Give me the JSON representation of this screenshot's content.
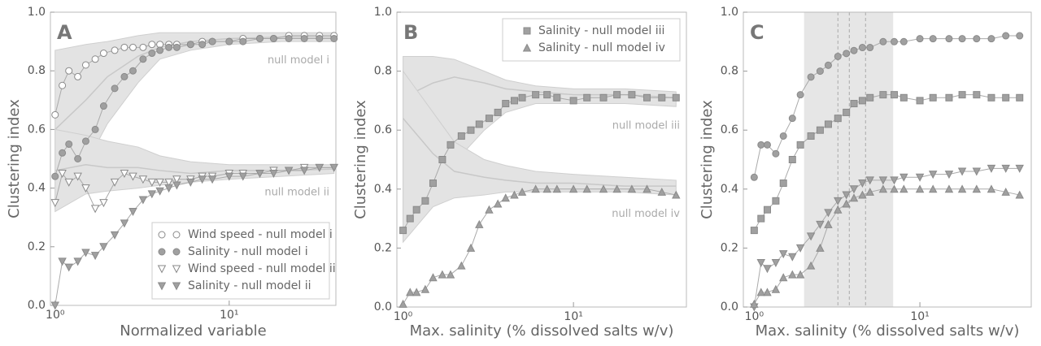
{
  "chart_data": [
    {
      "type": "scatter",
      "title": "A",
      "xlabel": "Normalized variable",
      "ylabel": "Clustering index",
      "log_x": true,
      "legend": "lower right",
      "xlim": [
        0.94,
        41
      ],
      "xticks": [
        {
          "value": 1,
          "label": "10⁰"
        },
        {
          "value": 10,
          "label": "10¹"
        }
      ],
      "ylim": [
        0,
        1
      ],
      "yticks": [
        {
          "value": 0,
          "label": "0.0"
        },
        0.2,
        0.4,
        0.6,
        0.8,
        {
          "value": 1,
          "label": "1.0"
        }
      ],
      "x": [
        1.0,
        1.1,
        1.2,
        1.35,
        1.5,
        1.7,
        1.9,
        2.2,
        2.5,
        2.8,
        3.2,
        3.6,
        4,
        4.5,
        5,
        6,
        7,
        8,
        10,
        12,
        15,
        18,
        22,
        27,
        33,
        40
      ],
      "series": [
        {
          "name": "Wind speed - null model i",
          "marker": "o",
          "color": "#ffffff",
          "values": [
            0.65,
            0.75,
            0.8,
            0.78,
            0.82,
            0.84,
            0.86,
            0.87,
            0.88,
            0.88,
            0.88,
            0.89,
            0.89,
            0.89,
            0.89,
            0.89,
            0.9,
            0.9,
            0.9,
            0.91,
            0.91,
            0.91,
            0.92,
            0.92,
            0.92,
            0.92
          ]
        },
        {
          "name": "Salinity - null model i",
          "marker": "o",
          "color": "#a0a0a0",
          "values": [
            0.44,
            0.52,
            0.55,
            0.5,
            0.56,
            0.6,
            0.68,
            0.74,
            0.78,
            0.8,
            0.84,
            0.86,
            0.87,
            0.88,
            0.88,
            0.89,
            0.89,
            0.9,
            0.9,
            0.9,
            0.91,
            0.91,
            0.91,
            0.91,
            0.91,
            0.91
          ]
        },
        {
          "name": "Wind speed - null model ii",
          "marker": "v",
          "color": "#ffffff",
          "values": [
            0.35,
            0.45,
            0.42,
            0.44,
            0.4,
            0.33,
            0.35,
            0.42,
            0.45,
            0.44,
            0.43,
            0.42,
            0.42,
            0.42,
            0.43,
            0.43,
            0.44,
            0.44,
            0.45,
            0.45,
            0.45,
            0.46,
            0.46,
            0.47,
            0.47,
            0.47
          ]
        },
        {
          "name": "Salinity - null model ii",
          "marker": "v",
          "color": "#a0a0a0",
          "values": [
            0.0,
            0.15,
            0.13,
            0.15,
            0.18,
            0.17,
            0.2,
            0.24,
            0.28,
            0.32,
            0.36,
            0.38,
            0.39,
            0.4,
            0.41,
            0.42,
            0.43,
            0.43,
            0.44,
            0.44,
            0.45,
            0.45,
            0.46,
            0.46,
            0.47,
            0.47
          ]
        }
      ],
      "bands": [
        {
          "name": "null model i",
          "x": [
            1,
            1.5,
            2,
            3,
            4,
            6,
            10,
            20,
            40
          ],
          "upper": [
            0.87,
            0.89,
            0.9,
            0.92,
            0.93,
            0.93,
            0.93,
            0.93,
            0.93
          ],
          "lower": [
            0.33,
            0.48,
            0.62,
            0.76,
            0.84,
            0.87,
            0.89,
            0.9,
            0.9
          ],
          "mean": [
            0.6,
            0.7,
            0.78,
            0.85,
            0.88,
            0.9,
            0.91,
            0.915,
            0.915
          ]
        },
        {
          "name": "null model ii",
          "x": [
            1,
            1.5,
            2,
            3,
            4,
            6,
            10,
            20,
            40
          ],
          "upper": [
            0.6,
            0.58,
            0.56,
            0.54,
            0.51,
            0.49,
            0.48,
            0.48,
            0.48
          ],
          "lower": [
            0.32,
            0.38,
            0.39,
            0.4,
            0.41,
            0.42,
            0.43,
            0.44,
            0.45
          ],
          "mean": [
            0.46,
            0.48,
            0.47,
            0.47,
            0.46,
            0.45,
            0.46,
            0.46,
            0.465
          ]
        }
      ]
    },
    {
      "type": "scatter",
      "title": "B",
      "xlabel": "Max. salinity (% dissolved salts w/v)",
      "ylabel": "Clustering index",
      "log_x": true,
      "legend": "upper right",
      "xlim": [
        0.92,
        46
      ],
      "xticks": [
        {
          "value": 1,
          "label": "10⁰"
        },
        {
          "value": 10,
          "label": "10¹"
        }
      ],
      "ylim": [
        0,
        1
      ],
      "yticks": [
        {
          "value": 0,
          "label": "0.0"
        },
        0.2,
        0.4,
        0.6,
        0.8,
        {
          "value": 1,
          "label": "1.0"
        }
      ],
      "x": [
        1.0,
        1.1,
        1.2,
        1.35,
        1.5,
        1.7,
        1.9,
        2.2,
        2.5,
        2.8,
        3.2,
        3.6,
        4,
        4.5,
        5,
        6,
        7,
        8,
        10,
        12,
        15,
        18,
        22,
        27,
        33,
        40
      ],
      "series": [
        {
          "name": "Salinity - null model iii",
          "marker": "s",
          "color": "#a0a0a0",
          "values": [
            0.26,
            0.3,
            0.33,
            0.36,
            0.42,
            0.5,
            0.55,
            0.58,
            0.6,
            0.62,
            0.64,
            0.66,
            0.69,
            0.7,
            0.71,
            0.72,
            0.72,
            0.71,
            0.7,
            0.71,
            0.71,
            0.72,
            0.72,
            0.71,
            0.71,
            0.71
          ]
        },
        {
          "name": "Salinity - null model iv",
          "marker": "^",
          "color": "#a0a0a0",
          "values": [
            0.01,
            0.05,
            0.05,
            0.06,
            0.1,
            0.11,
            0.11,
            0.14,
            0.2,
            0.28,
            0.33,
            0.35,
            0.37,
            0.38,
            0.39,
            0.4,
            0.4,
            0.4,
            0.4,
            0.4,
            0.4,
            0.4,
            0.4,
            0.4,
            0.39,
            0.38
          ]
        }
      ],
      "bands": [
        {
          "name": "null model iii",
          "x": [
            1,
            1.5,
            2,
            3,
            4,
            6,
            10,
            20,
            40
          ],
          "upper": [
            0.85,
            0.85,
            0.84,
            0.8,
            0.77,
            0.75,
            0.74,
            0.74,
            0.73
          ],
          "lower": [
            0.29,
            0.38,
            0.49,
            0.6,
            0.66,
            0.69,
            0.69,
            0.69,
            0.68
          ],
          "mean": [
            0.71,
            0.76,
            0.78,
            0.76,
            0.74,
            0.73,
            0.72,
            0.72,
            0.71
          ]
        },
        {
          "name": "null model iv",
          "x": [
            1,
            1.5,
            2,
            3,
            4,
            6,
            10,
            20,
            40
          ],
          "upper": [
            0.8,
            0.66,
            0.56,
            0.5,
            0.48,
            0.46,
            0.45,
            0.44,
            0.43
          ],
          "lower": [
            0.22,
            0.34,
            0.37,
            0.38,
            0.39,
            0.39,
            0.39,
            0.39,
            0.38
          ],
          "mean": [
            0.64,
            0.52,
            0.46,
            0.44,
            0.43,
            0.42,
            0.42,
            0.41,
            0.41
          ]
        }
      ]
    },
    {
      "type": "scatter",
      "title": "C",
      "xlabel": "Max. salinity (% dissolved salts w/v)",
      "ylabel": "Clustering index",
      "log_x": true,
      "xlim": [
        0.86,
        47
      ],
      "xticks": [
        {
          "value": 1,
          "label": "10⁰"
        },
        {
          "value": 10,
          "label": "10¹"
        }
      ],
      "ylim": [
        0,
        1
      ],
      "yticks": [
        {
          "value": 0,
          "label": "0.0"
        },
        0.2,
        0.4,
        0.6,
        0.8,
        {
          "value": 1,
          "label": "1.0"
        }
      ],
      "span": [
        2.0,
        6.9
      ],
      "vlines": [
        3.2,
        3.75,
        4.7
      ],
      "x": [
        1.0,
        1.1,
        1.2,
        1.35,
        1.5,
        1.7,
        1.9,
        2.2,
        2.5,
        2.8,
        3.2,
        3.6,
        4,
        4.5,
        5,
        6,
        7,
        8,
        10,
        12,
        15,
        18,
        22,
        27,
        33,
        40
      ],
      "series": [
        {
          "marker": "o",
          "color": "#a0a0a0",
          "values": [
            0.44,
            0.55,
            0.55,
            0.52,
            0.58,
            0.64,
            0.72,
            0.78,
            0.8,
            0.82,
            0.85,
            0.86,
            0.87,
            0.88,
            0.88,
            0.9,
            0.9,
            0.9,
            0.91,
            0.91,
            0.91,
            0.91,
            0.91,
            0.91,
            0.92,
            0.92
          ]
        },
        {
          "marker": "s",
          "color": "#a0a0a0",
          "values": [
            0.26,
            0.3,
            0.33,
            0.36,
            0.42,
            0.5,
            0.55,
            0.58,
            0.6,
            0.62,
            0.64,
            0.66,
            0.69,
            0.7,
            0.71,
            0.72,
            0.72,
            0.71,
            0.7,
            0.71,
            0.71,
            0.72,
            0.72,
            0.71,
            0.71,
            0.71
          ]
        },
        {
          "marker": "v",
          "color": "#a0a0a0",
          "values": [
            0.0,
            0.15,
            0.13,
            0.15,
            0.18,
            0.17,
            0.2,
            0.24,
            0.28,
            0.32,
            0.36,
            0.38,
            0.4,
            0.42,
            0.43,
            0.43,
            0.43,
            0.44,
            0.44,
            0.45,
            0.45,
            0.46,
            0.46,
            0.47,
            0.47,
            0.47
          ]
        },
        {
          "marker": "^",
          "color": "#a0a0a0",
          "values": [
            0.01,
            0.05,
            0.05,
            0.06,
            0.1,
            0.11,
            0.11,
            0.14,
            0.2,
            0.28,
            0.33,
            0.35,
            0.37,
            0.38,
            0.39,
            0.4,
            0.4,
            0.4,
            0.4,
            0.4,
            0.4,
            0.4,
            0.4,
            0.4,
            0.39,
            0.38
          ]
        }
      ]
    }
  ]
}
